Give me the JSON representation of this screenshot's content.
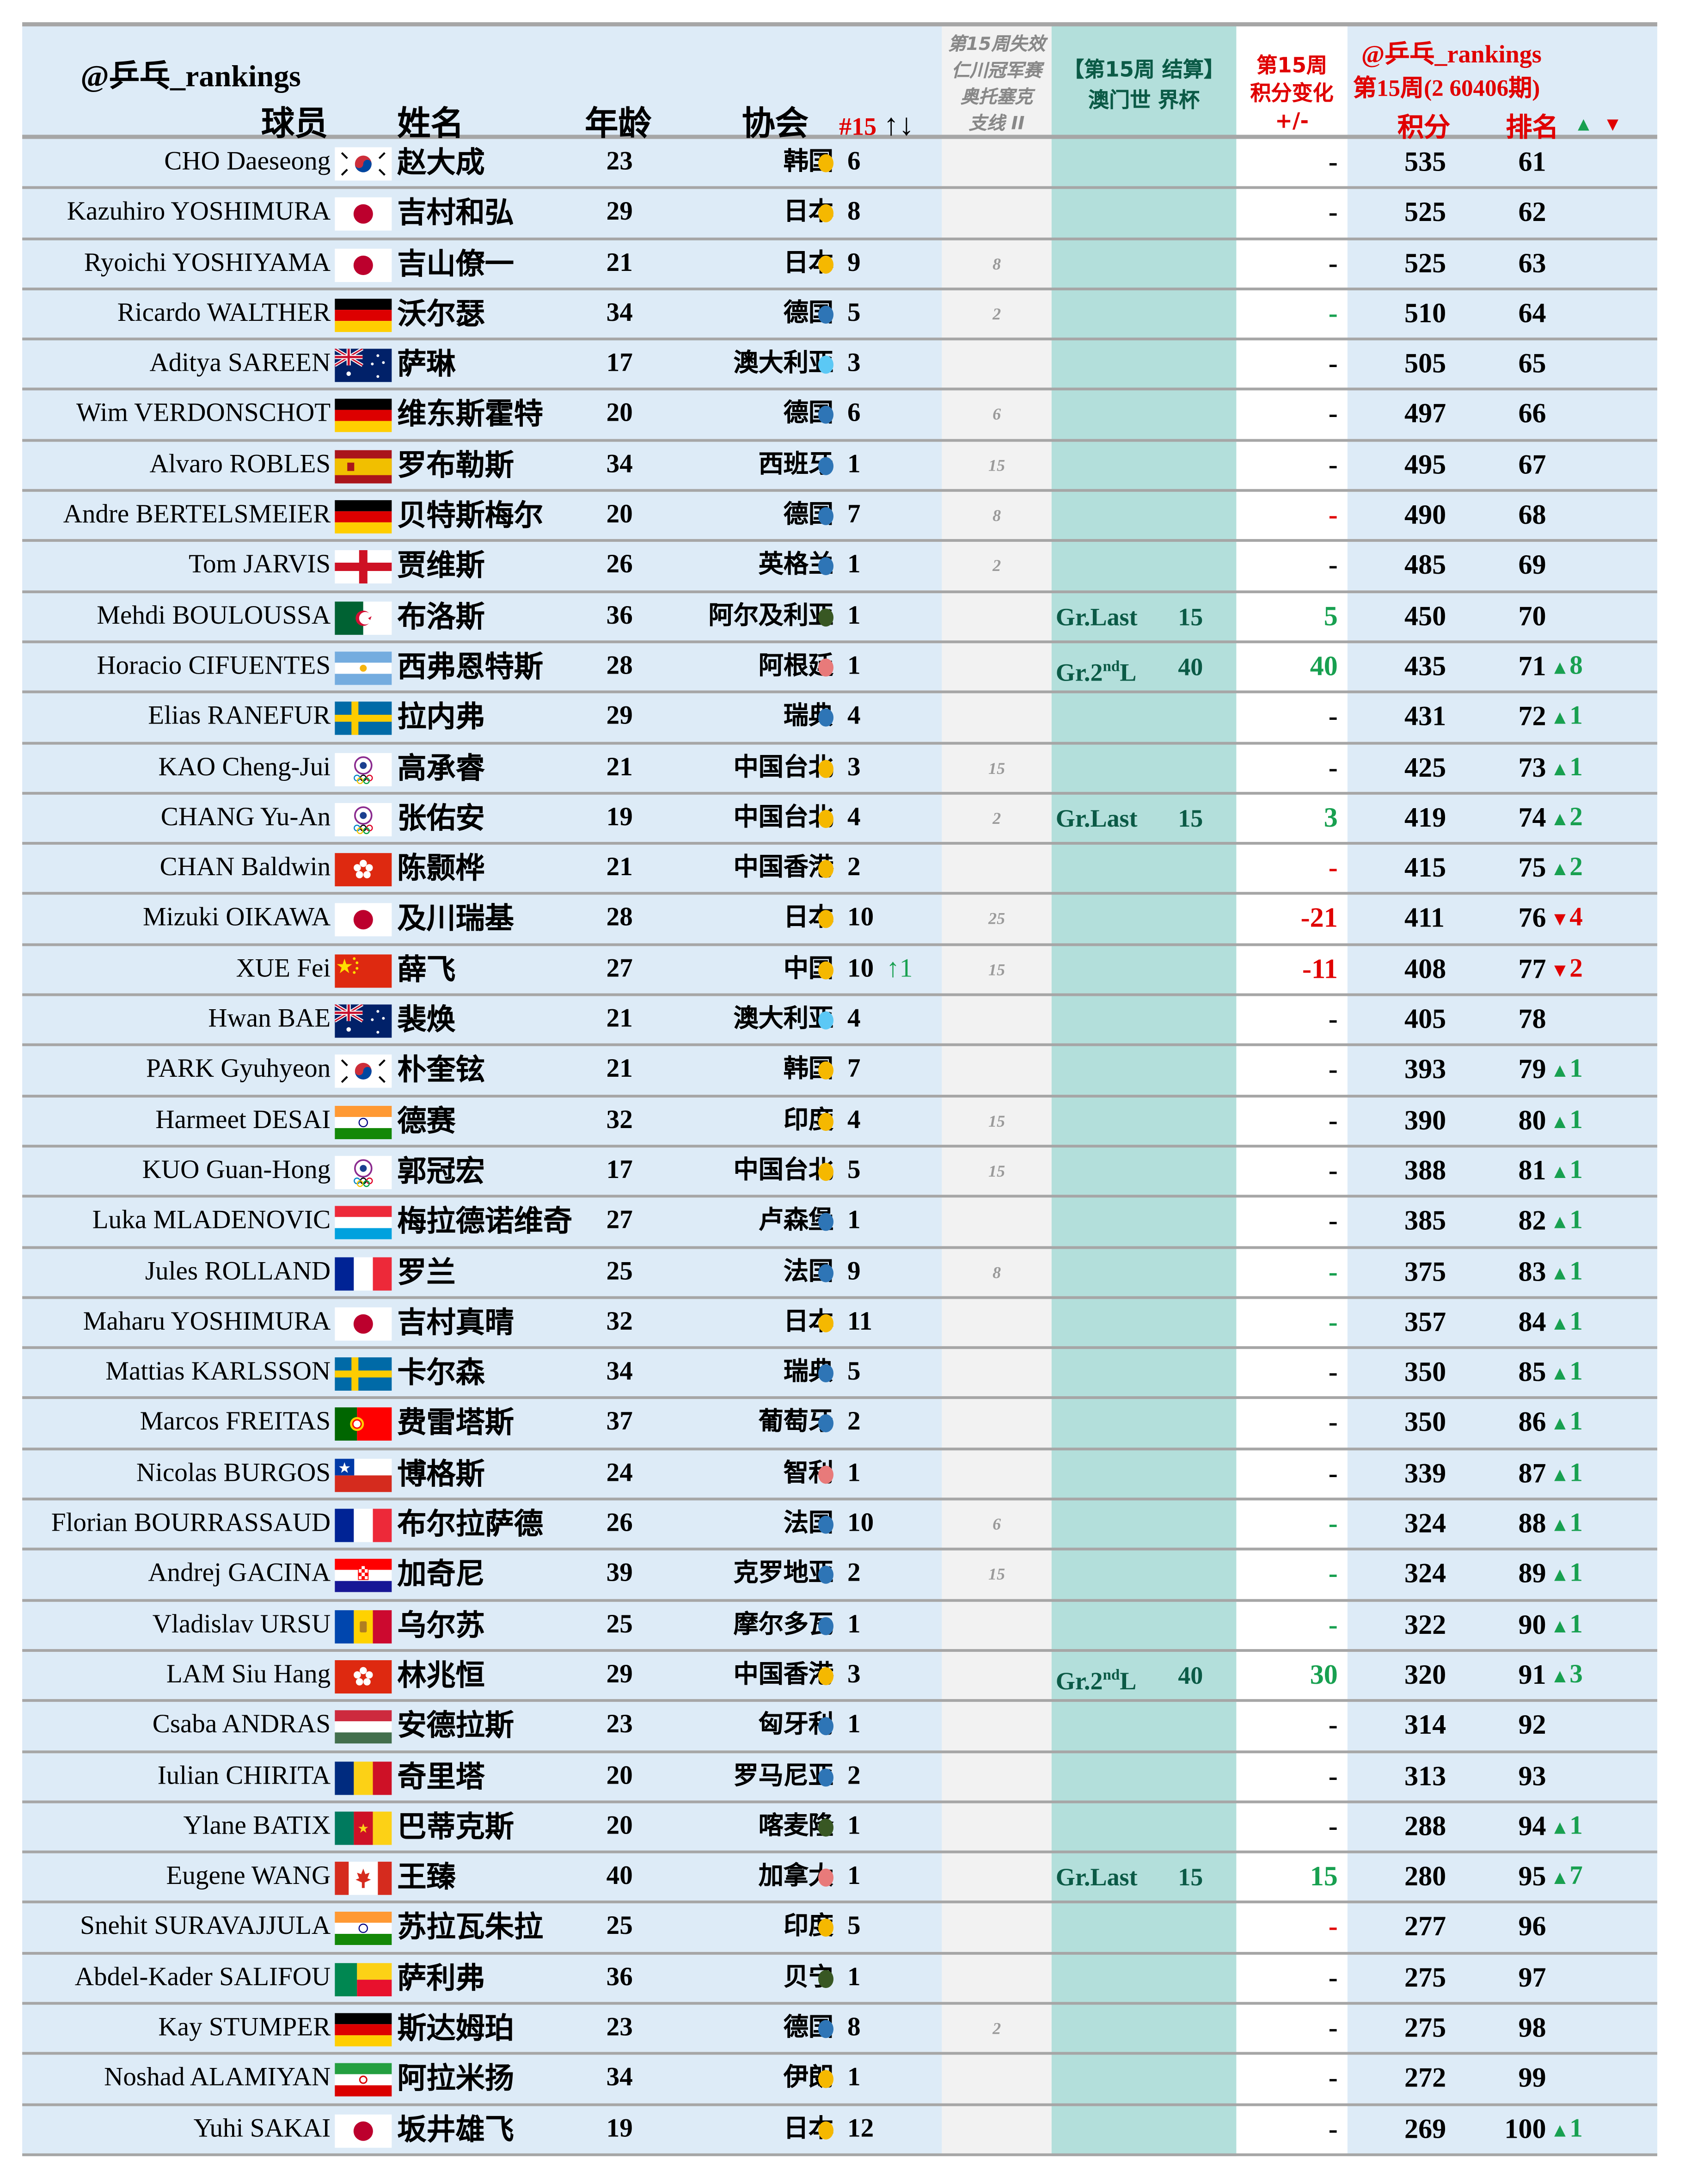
{
  "header": {
    "brand": "@乒乓_rankings",
    "col_player": "球员",
    "col_name": "姓名",
    "col_age": "年龄",
    "col_assoc": "协会",
    "col_rank15": "#15",
    "col_rank15_arrows": "↑↓",
    "col_lost_lines": [
      "第15周失效",
      "仁川冠军赛",
      "奥托塞克",
      "支线 II"
    ],
    "col_event_lines": [
      "【第15周 结算】",
      "澳门世 界杯"
    ],
    "col_change_lines": [
      "第15周",
      "积分变化",
      "+/-"
    ],
    "right_brand": "@乒乓_rankings",
    "right_period": "第15周(2 60406期)",
    "col_points": "积分",
    "col_rank": "排名",
    "up_symbol": "▲",
    "down_symbol": "▼"
  },
  "colors": {
    "main_bg": "#ddebf7",
    "lost_bg": "#f2f2f2",
    "teal_bg": "#b3dfdb",
    "grid": "#a6a6a6",
    "red": "#e00000",
    "green": "#18a050",
    "event_text": "#0b5a46",
    "dot_yellow": "#f5b800",
    "dot_blue": "#2e75b6",
    "dot_lightblue": "#5bc8f5",
    "dot_green": "#385723",
    "dot_pink": "#e87a7a"
  },
  "rows": [
    {
      "en": "CHO Daeseong",
      "flag": "KOR",
      "cn": "赵大成",
      "age": "23",
      "assoc": "韩国",
      "dot": "yellow",
      "count": "6",
      "up15": "",
      "lost": "",
      "event": "",
      "event_pts": "",
      "change": "-",
      "change_color": "black",
      "points": "535",
      "rank": "61",
      "move": "",
      "move_dir": ""
    },
    {
      "en": "Kazuhiro YOSHIMURA",
      "flag": "JPN",
      "cn": "吉村和弘",
      "age": "29",
      "assoc": "日本",
      "dot": "yellow",
      "count": "8",
      "up15": "",
      "lost": "",
      "event": "",
      "event_pts": "",
      "change": "-",
      "change_color": "black",
      "points": "525",
      "rank": "62",
      "move": "",
      "move_dir": ""
    },
    {
      "en": "Ryoichi YOSHIYAMA",
      "flag": "JPN",
      "cn": "吉山僚一",
      "age": "21",
      "assoc": "日本",
      "dot": "yellow",
      "count": "9",
      "up15": "",
      "lost": "8",
      "event": "",
      "event_pts": "",
      "change": "-",
      "change_color": "black",
      "points": "525",
      "rank": "63",
      "move": "",
      "move_dir": ""
    },
    {
      "en": "Ricardo WALTHER",
      "flag": "GER",
      "cn": "沃尔瑟",
      "age": "34",
      "assoc": "德国",
      "dot": "blue",
      "count": "5",
      "up15": "",
      "lost": "2",
      "event": "",
      "event_pts": "",
      "change": "-",
      "change_color": "green",
      "points": "510",
      "rank": "64",
      "move": "",
      "move_dir": ""
    },
    {
      "en": "Aditya SAREEN",
      "flag": "AUS",
      "cn": "萨琳",
      "age": "17",
      "assoc": "澳大利亚",
      "dot": "lightblue",
      "count": "3",
      "up15": "",
      "lost": "",
      "event": "",
      "event_pts": "",
      "change": "-",
      "change_color": "black",
      "points": "505",
      "rank": "65",
      "move": "",
      "move_dir": ""
    },
    {
      "en": "Wim VERDONSCHOT",
      "flag": "GER",
      "cn": "维东斯霍特",
      "age": "20",
      "assoc": "德国",
      "dot": "blue",
      "count": "6",
      "up15": "",
      "lost": "6",
      "event": "",
      "event_pts": "",
      "change": "-",
      "change_color": "black",
      "points": "497",
      "rank": "66",
      "move": "",
      "move_dir": ""
    },
    {
      "en": "Alvaro ROBLES",
      "flag": "ESP",
      "cn": "罗布勒斯",
      "age": "34",
      "assoc": "西班牙",
      "dot": "blue",
      "count": "1",
      "up15": "",
      "lost": "15",
      "event": "",
      "event_pts": "",
      "change": "-",
      "change_color": "black",
      "points": "495",
      "rank": "67",
      "move": "",
      "move_dir": ""
    },
    {
      "en": "Andre BERTELSMEIER",
      "flag": "GER",
      "cn": "贝特斯梅尔",
      "age": "20",
      "assoc": "德国",
      "dot": "blue",
      "count": "7",
      "up15": "",
      "lost": "8",
      "event": "",
      "event_pts": "",
      "change": "-",
      "change_color": "red",
      "points": "490",
      "rank": "68",
      "move": "",
      "move_dir": ""
    },
    {
      "en": "Tom JARVIS",
      "flag": "ENG",
      "cn": "贾维斯",
      "age": "26",
      "assoc": "英格兰",
      "dot": "blue",
      "count": "1",
      "up15": "",
      "lost": "2",
      "event": "",
      "event_pts": "",
      "change": "-",
      "change_color": "black",
      "points": "485",
      "rank": "69",
      "move": "",
      "move_dir": ""
    },
    {
      "en": "Mehdi BOULOUSSA",
      "flag": "ALG",
      "cn": "布洛斯",
      "age": "36",
      "assoc": "阿尔及利亚",
      "dot": "green",
      "count": "1",
      "up15": "",
      "lost": "",
      "event": "Gr.Last",
      "event_sup": "",
      "event_pts": "15",
      "change": "5",
      "change_color": "green",
      "points": "450",
      "rank": "70",
      "move": "",
      "move_dir": ""
    },
    {
      "en": "Horacio CIFUENTES",
      "flag": "ARG",
      "cn": "西弗恩特斯",
      "age": "28",
      "assoc": "阿根廷",
      "dot": "pink",
      "count": "1",
      "up15": "",
      "lost": "",
      "event": "Gr.2",
      "event_sup": "nd",
      "event_tail": "L",
      "event_pts": "40",
      "change": "40",
      "change_color": "green",
      "points": "435",
      "rank": "71",
      "move": "8",
      "move_dir": "up"
    },
    {
      "en": "Elias RANEFUR",
      "flag": "SWE",
      "cn": "拉内弗",
      "age": "29",
      "assoc": "瑞典",
      "dot": "blue",
      "count": "4",
      "up15": "",
      "lost": "",
      "event": "",
      "event_pts": "",
      "change": "-",
      "change_color": "black",
      "points": "431",
      "rank": "72",
      "move": "1",
      "move_dir": "up"
    },
    {
      "en": "KAO Cheng-Jui",
      "flag": "TPE",
      "cn": "高承睿",
      "age": "21",
      "assoc": "中国台北",
      "dot": "yellow",
      "count": "3",
      "up15": "",
      "lost": "15",
      "event": "",
      "event_pts": "",
      "change": "-",
      "change_color": "black",
      "points": "425",
      "rank": "73",
      "move": "1",
      "move_dir": "up"
    },
    {
      "en": "CHANG Yu-An",
      "flag": "TPE",
      "cn": "张佑安",
      "age": "19",
      "assoc": "中国台北",
      "dot": "yellow",
      "count": "4",
      "up15": "",
      "lost": "2",
      "event": "Gr.Last",
      "event_sup": "",
      "event_pts": "15",
      "change": "3",
      "change_color": "green",
      "points": "419",
      "rank": "74",
      "move": "2",
      "move_dir": "up"
    },
    {
      "en": "CHAN Baldwin",
      "flag": "HKG",
      "cn": "陈颢桦",
      "age": "21",
      "assoc": "中国香港",
      "dot": "yellow",
      "count": "2",
      "up15": "",
      "lost": "",
      "event": "",
      "event_pts": "",
      "change": "-",
      "change_color": "red",
      "points": "415",
      "rank": "75",
      "move": "2",
      "move_dir": "up"
    },
    {
      "en": "Mizuki OIKAWA",
      "flag": "JPN",
      "cn": "及川瑞基",
      "age": "28",
      "assoc": "日本",
      "dot": "yellow",
      "count": "10",
      "up15": "",
      "lost": "25",
      "event": "",
      "event_pts": "",
      "change": "-21",
      "change_color": "red",
      "points": "411",
      "rank": "76",
      "move": "4",
      "move_dir": "down"
    },
    {
      "en": "XUE Fei",
      "flag": "CHN",
      "cn": "薛飞",
      "age": "27",
      "assoc": "中国",
      "dot": "yellow",
      "count": "10",
      "up15": "↑1",
      "lost": "15",
      "event": "",
      "event_pts": "",
      "change": "-11",
      "change_color": "red",
      "points": "408",
      "rank": "77",
      "move": "2",
      "move_dir": "down"
    },
    {
      "en": "Hwan BAE",
      "flag": "AUS",
      "cn": "裴焕",
      "age": "21",
      "assoc": "澳大利亚",
      "dot": "lightblue",
      "count": "4",
      "up15": "",
      "lost": "",
      "event": "",
      "event_pts": "",
      "change": "-",
      "change_color": "black",
      "points": "405",
      "rank": "78",
      "move": "",
      "move_dir": ""
    },
    {
      "en": "PARK Gyuhyeon",
      "flag": "KOR",
      "cn": "朴奎铉",
      "age": "21",
      "assoc": "韩国",
      "dot": "yellow",
      "count": "7",
      "up15": "",
      "lost": "",
      "event": "",
      "event_pts": "",
      "change": "-",
      "change_color": "black",
      "points": "393",
      "rank": "79",
      "move": "1",
      "move_dir": "up"
    },
    {
      "en": "Harmeet DESAI",
      "flag": "IND",
      "cn": "德赛",
      "age": "32",
      "assoc": "印度",
      "dot": "yellow",
      "count": "4",
      "up15": "",
      "lost": "15",
      "event": "",
      "event_pts": "",
      "change": "-",
      "change_color": "black",
      "points": "390",
      "rank": "80",
      "move": "1",
      "move_dir": "up"
    },
    {
      "en": "KUO Guan-Hong",
      "flag": "TPE",
      "cn": "郭冠宏",
      "age": "17",
      "assoc": "中国台北",
      "dot": "yellow",
      "count": "5",
      "up15": "",
      "lost": "15",
      "event": "",
      "event_pts": "",
      "change": "-",
      "change_color": "black",
      "points": "388",
      "rank": "81",
      "move": "1",
      "move_dir": "up"
    },
    {
      "en": "Luka MLADENOVIC",
      "flag": "LUX",
      "cn": "梅拉德诺维奇",
      "age": "27",
      "assoc": "卢森堡",
      "dot": "blue",
      "count": "1",
      "up15": "",
      "lost": "",
      "event": "",
      "event_pts": "",
      "change": "-",
      "change_color": "black",
      "points": "385",
      "rank": "82",
      "move": "1",
      "move_dir": "up"
    },
    {
      "en": "Jules ROLLAND",
      "flag": "FRA",
      "cn": "罗兰",
      "age": "25",
      "assoc": "法国",
      "dot": "blue",
      "count": "9",
      "up15": "",
      "lost": "8",
      "event": "",
      "event_pts": "",
      "change": "-",
      "change_color": "green",
      "points": "375",
      "rank": "83",
      "move": "1",
      "move_dir": "up"
    },
    {
      "en": "Maharu YOSHIMURA",
      "flag": "JPN",
      "cn": "吉村真晴",
      "age": "32",
      "assoc": "日本",
      "dot": "yellow",
      "count": "11",
      "up15": "",
      "lost": "",
      "event": "",
      "event_pts": "",
      "change": "-",
      "change_color": "green",
      "points": "357",
      "rank": "84",
      "move": "1",
      "move_dir": "up"
    },
    {
      "en": "Mattias KARLSSON",
      "flag": "SWE",
      "cn": "卡尔森",
      "age": "34",
      "assoc": "瑞典",
      "dot": "blue",
      "count": "5",
      "up15": "",
      "lost": "",
      "event": "",
      "event_pts": "",
      "change": "-",
      "change_color": "black",
      "points": "350",
      "rank": "85",
      "move": "1",
      "move_dir": "up"
    },
    {
      "en": "Marcos FREITAS",
      "flag": "POR",
      "cn": "费雷塔斯",
      "age": "37",
      "assoc": "葡萄牙",
      "dot": "blue",
      "count": "2",
      "up15": "",
      "lost": "",
      "event": "",
      "event_pts": "",
      "change": "-",
      "change_color": "black",
      "points": "350",
      "rank": "86",
      "move": "1",
      "move_dir": "up"
    },
    {
      "en": "Nicolas BURGOS",
      "flag": "CHI",
      "cn": "博格斯",
      "age": "24",
      "assoc": "智利",
      "dot": "pink",
      "count": "1",
      "up15": "",
      "lost": "",
      "event": "",
      "event_pts": "",
      "change": "-",
      "change_color": "black",
      "points": "339",
      "rank": "87",
      "move": "1",
      "move_dir": "up"
    },
    {
      "en": "Florian BOURRASSAUD",
      "flag": "FRA",
      "cn": "布尔拉萨德",
      "age": "26",
      "assoc": "法国",
      "dot": "blue",
      "count": "10",
      "up15": "",
      "lost": "6",
      "event": "",
      "event_pts": "",
      "change": "-",
      "change_color": "green",
      "points": "324",
      "rank": "88",
      "move": "1",
      "move_dir": "up"
    },
    {
      "en": "Andrej GACINA",
      "flag": "CRO",
      "cn": "加奇尼",
      "age": "39",
      "assoc": "克罗地亚",
      "dot": "blue",
      "count": "2",
      "up15": "",
      "lost": "15",
      "event": "",
      "event_pts": "",
      "change": "-",
      "change_color": "green",
      "points": "324",
      "rank": "89",
      "move": "1",
      "move_dir": "up"
    },
    {
      "en": "Vladislav URSU",
      "flag": "MDA",
      "cn": "乌尔苏",
      "age": "25",
      "assoc": "摩尔多瓦",
      "dot": "blue",
      "count": "1",
      "up15": "",
      "lost": "",
      "event": "",
      "event_pts": "",
      "change": "-",
      "change_color": "green",
      "points": "322",
      "rank": "90",
      "move": "1",
      "move_dir": "up"
    },
    {
      "en": "LAM Siu Hang",
      "flag": "HKG",
      "cn": "林兆恒",
      "age": "29",
      "assoc": "中国香港",
      "dot": "yellow",
      "count": "3",
      "up15": "",
      "lost": "",
      "event": "Gr.2",
      "event_sup": "nd",
      "event_tail": "L",
      "event_pts": "40",
      "change": "30",
      "change_color": "green",
      "points": "320",
      "rank": "91",
      "move": "3",
      "move_dir": "up"
    },
    {
      "en": "Csaba ANDRAS",
      "flag": "HUN",
      "cn": "安德拉斯",
      "age": "23",
      "assoc": "匈牙利",
      "dot": "blue",
      "count": "1",
      "up15": "",
      "lost": "",
      "event": "",
      "event_pts": "",
      "change": "-",
      "change_color": "black",
      "points": "314",
      "rank": "92",
      "move": "",
      "move_dir": ""
    },
    {
      "en": "Iulian CHIRITA",
      "flag": "ROU",
      "cn": "奇里塔",
      "age": "20",
      "assoc": "罗马尼亚",
      "dot": "blue",
      "count": "2",
      "up15": "",
      "lost": "",
      "event": "",
      "event_pts": "",
      "change": "-",
      "change_color": "black",
      "points": "313",
      "rank": "93",
      "move": "",
      "move_dir": ""
    },
    {
      "en": "Ylane BATIX",
      "flag": "CMR",
      "cn": "巴蒂克斯",
      "age": "20",
      "assoc": "喀麦隆",
      "dot": "green",
      "count": "1",
      "up15": "",
      "lost": "",
      "event": "",
      "event_pts": "",
      "change": "-",
      "change_color": "black",
      "points": "288",
      "rank": "94",
      "move": "1",
      "move_dir": "up"
    },
    {
      "en": "Eugene WANG",
      "flag": "CAN",
      "cn": "王臻",
      "age": "40",
      "assoc": "加拿大",
      "dot": "pink",
      "count": "1",
      "up15": "",
      "lost": "",
      "event": "Gr.Last",
      "event_sup": "",
      "event_pts": "15",
      "change": "15",
      "change_color": "green",
      "points": "280",
      "rank": "95",
      "move": "7",
      "move_dir": "up"
    },
    {
      "en": "Snehit SURAVAJJULA",
      "flag": "IND",
      "cn": "苏拉瓦朱拉",
      "age": "25",
      "assoc": "印度",
      "dot": "yellow",
      "count": "5",
      "up15": "",
      "lost": "",
      "event": "",
      "event_pts": "",
      "change": "-",
      "change_color": "red",
      "points": "277",
      "rank": "96",
      "move": "",
      "move_dir": ""
    },
    {
      "en": "Abdel-Kader SALIFOU",
      "flag": "BEN",
      "cn": "萨利弗",
      "age": "36",
      "assoc": "贝宁",
      "dot": "green",
      "count": "1",
      "up15": "",
      "lost": "",
      "event": "",
      "event_pts": "",
      "change": "-",
      "change_color": "black",
      "points": "275",
      "rank": "97",
      "move": "",
      "move_dir": ""
    },
    {
      "en": "Kay STUMPER",
      "flag": "GER",
      "cn": "斯达姆珀",
      "age": "23",
      "assoc": "德国",
      "dot": "blue",
      "count": "8",
      "up15": "",
      "lost": "2",
      "event": "",
      "event_pts": "",
      "change": "-",
      "change_color": "black",
      "points": "275",
      "rank": "98",
      "move": "",
      "move_dir": ""
    },
    {
      "en": "Noshad ALAMIYAN",
      "flag": "IRI",
      "cn": "阿拉米扬",
      "age": "34",
      "assoc": "伊朗",
      "dot": "yellow",
      "count": "1",
      "up15": "",
      "lost": "",
      "event": "",
      "event_pts": "",
      "change": "-",
      "change_color": "black",
      "points": "272",
      "rank": "99",
      "move": "",
      "move_dir": ""
    },
    {
      "en": "Yuhi SAKAI",
      "flag": "JPN",
      "cn": "坂井雄飞",
      "age": "19",
      "assoc": "日本",
      "dot": "yellow",
      "count": "12",
      "up15": "",
      "lost": "",
      "event": "",
      "event_pts": "",
      "change": "-",
      "change_color": "black",
      "points": "269",
      "rank": "100",
      "move": "1",
      "move_dir": "up"
    }
  ]
}
